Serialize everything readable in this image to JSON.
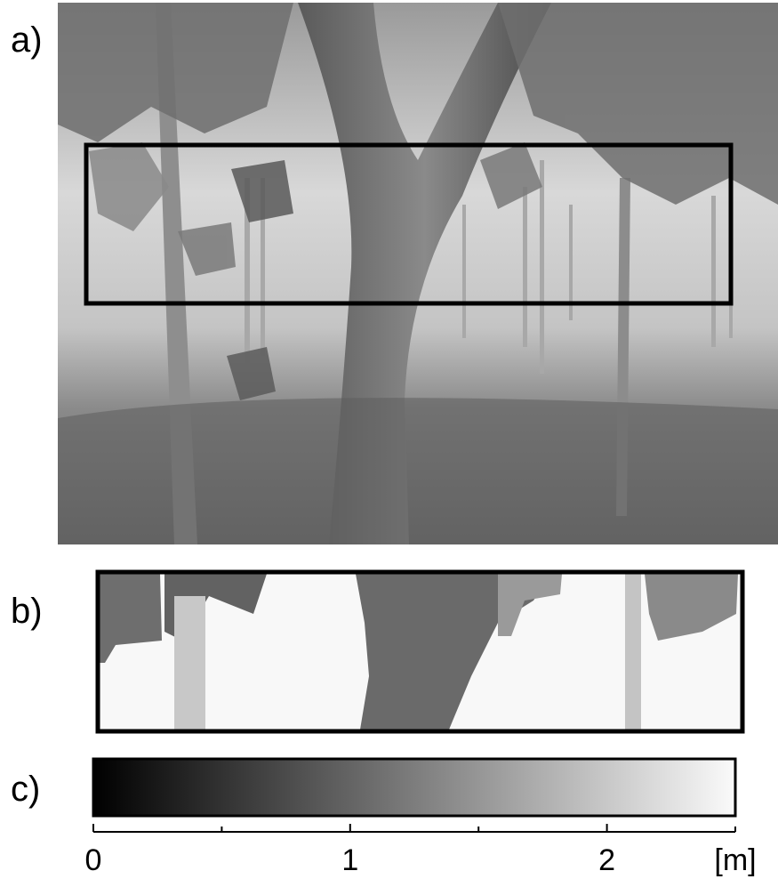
{
  "panels": {
    "a": "a)",
    "b": "b)",
    "c": "c)"
  },
  "colorbar": {
    "lim": [
      0,
      2.5
    ],
    "major_ticks": [
      0,
      1,
      2
    ],
    "minor_ticks": [
      0.5,
      1.5,
      2.5
    ],
    "unit": "[m]"
  }
}
